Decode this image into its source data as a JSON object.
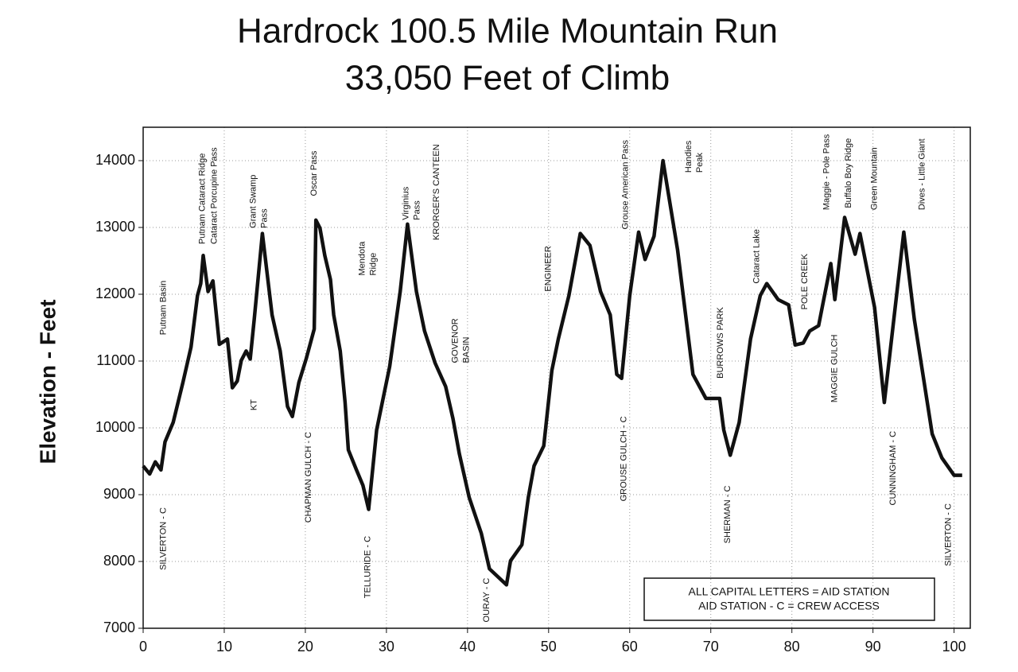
{
  "chart_data": {
    "type": "line",
    "title": [
      "Hardrock 100.5 Mile Mountain Run",
      "33,050 Feet of Climb"
    ],
    "y_label": "Elevation - Feet",
    "color": "#111111",
    "grid": true,
    "xlim": [
      0,
      102
    ],
    "ylim": [
      7000,
      14500
    ],
    "xticks": [
      0,
      10,
      20,
      30,
      40,
      50,
      60,
      70,
      80,
      90,
      100
    ],
    "yticks": [
      7000,
      8000,
      9000,
      10000,
      11000,
      12000,
      13000,
      14000
    ],
    "x": [
      0,
      0.8,
      1.5,
      2.2,
      2.7,
      3.7,
      4.9,
      5.9,
      6.7,
      7.1,
      7.4,
      8.0,
      8.6,
      9.4,
      10.4,
      11.0,
      11.6,
      12.1,
      12.7,
      13.2,
      13.7,
      14.7,
      15.9,
      16.9,
      17.8,
      18.4,
      19.2,
      20.1,
      21.1,
      21.3,
      21.8,
      22.4,
      23.1,
      23.5,
      24.3,
      24.9,
      25.3,
      26.3,
      27.1,
      27.8,
      28.8,
      30.4,
      31.7,
      32.6,
      33.7,
      34.7,
      36.0,
      37.3,
      38.2,
      39.0,
      40.2,
      41.7,
      42.7,
      44.8,
      45.3,
      46.7,
      47.5,
      48.2,
      49.4,
      50.4,
      51.2,
      52.5,
      53.9,
      55.1,
      56.4,
      57.6,
      58.4,
      59.0,
      60.0,
      61.1,
      61.9,
      63.0,
      64.1,
      65.9,
      67.8,
      69.4,
      71.1,
      71.6,
      72.4,
      73.5,
      74.9,
      76.1,
      76.9,
      78.3,
      79.6,
      80.4,
      81.4,
      82.2,
      83.3,
      84.8,
      85.3,
      86.5,
      87.8,
      88.4,
      90.2,
      91.4,
      93.8,
      95.1,
      97.3,
      98.5,
      100.0,
      101.0
    ],
    "values": [
      9430,
      9310,
      9490,
      9370,
      9790,
      10080,
      10680,
      11210,
      11980,
      12160,
      12580,
      12040,
      12200,
      11250,
      11330,
      10600,
      10700,
      11010,
      11150,
      11030,
      11630,
      12910,
      11690,
      11150,
      10320,
      10170,
      10680,
      11030,
      11480,
      13110,
      12990,
      12580,
      12220,
      11690,
      11150,
      10380,
      9670,
      9370,
      9140,
      8780,
      9970,
      10920,
      12040,
      13050,
      12040,
      11450,
      10970,
      10620,
      10140,
      9610,
      8960,
      8420,
      7890,
      7650,
      8010,
      8250,
      8960,
      9430,
      9730,
      10860,
      11330,
      11980,
      12910,
      12730,
      12040,
      11690,
      10800,
      10740,
      11980,
      12930,
      12520,
      12870,
      14000,
      12670,
      10800,
      10440,
      10440,
      9970,
      9590,
      10080,
      11330,
      11980,
      12160,
      11920,
      11840,
      11240,
      11270,
      11450,
      11530,
      12460,
      11920,
      13150,
      12600,
      12910,
      11800,
      10380,
      12930,
      11630,
      9910,
      9550,
      9290,
      9290
    ],
    "annotations": [
      {
        "lines": [
          "Putnam Basin"
        ],
        "x": 2.5,
        "y": 11390
      },
      {
        "lines": [
          "Putnam Cataract Ridge"
        ],
        "x": 7.3,
        "y": 12750
      },
      {
        "lines": [
          "Cataract Porcupine Pass"
        ],
        "x": 8.8,
        "y": 12750
      },
      {
        "lines": [
          "Grant Swamp",
          "Pass"
        ],
        "x": 14.3,
        "y": 12990
      },
      {
        "lines": [
          "Oscar Pass"
        ],
        "x": 21.1,
        "y": 13470
      },
      {
        "lines": [
          "KT"
        ],
        "x": 13.7,
        "y": 10260
      },
      {
        "lines": [
          "CHAPMAN GULCH - C"
        ],
        "x": 20.4,
        "y": 8580
      },
      {
        "lines": [
          "SILVERTON - C"
        ],
        "x": 2.5,
        "y": 7870
      },
      {
        "lines": [
          "Mendota",
          "Ridge"
        ],
        "x": 27.7,
        "y": 12280
      },
      {
        "lines": [
          "Virginius",
          "Pass"
        ],
        "x": 33.1,
        "y": 13110
      },
      {
        "lines": [
          "KRORGER'S CANTEEN"
        ],
        "x": 36.2,
        "y": 12810
      },
      {
        "lines": [
          "GOVENOR",
          "BASIN"
        ],
        "x": 39.2,
        "y": 10970
      },
      {
        "lines": [
          "TELLURIDE - C"
        ],
        "x": 27.7,
        "y": 7450
      },
      {
        "lines": [
          "OURAY - C"
        ],
        "x": 42.4,
        "y": 7090
      },
      {
        "lines": [
          "ENGINEER"
        ],
        "x": 50.0,
        "y": 12040
      },
      {
        "lines": [
          "GROUSE GULCH - C"
        ],
        "x": 59.3,
        "y": 8900
      },
      {
        "lines": [
          "Grouse American Pass"
        ],
        "x": 59.5,
        "y": 12970
      },
      {
        "lines": [
          "Handies",
          "Peak"
        ],
        "x": 68.0,
        "y": 13820
      },
      {
        "lines": [
          "BURROWS PARK"
        ],
        "x": 71.2,
        "y": 10740
      },
      {
        "lines": [
          "SHERMAN - C"
        ],
        "x": 72.1,
        "y": 8270
      },
      {
        "lines": [
          "Cataract Lake"
        ],
        "x": 75.7,
        "y": 12160
      },
      {
        "lines": [
          "POLE CREEK"
        ],
        "x": 81.6,
        "y": 11770
      },
      {
        "lines": [
          "MAGGIE GULCH"
        ],
        "x": 85.3,
        "y": 10380
      },
      {
        "lines": [
          "Maggie - Pole Pass"
        ],
        "x": 84.3,
        "y": 13260
      },
      {
        "lines": [
          "Buffalo Boy Ridge"
        ],
        "x": 87.0,
        "y": 13290
      },
      {
        "lines": [
          "Green Mountain"
        ],
        "x": 90.2,
        "y": 13260
      },
      {
        "lines": [
          "CUNNINGHAM - C"
        ],
        "x": 92.5,
        "y": 8840
      },
      {
        "lines": [
          "Dives - Little Giant"
        ],
        "x": 96.1,
        "y": 13260
      },
      {
        "lines": [
          "SILVERTON - C"
        ],
        "x": 99.3,
        "y": 7930
      }
    ],
    "note": [
      "ALL CAPITAL LETTERS = AID STATION",
      "AID STATION - C = CREW ACCESS"
    ]
  }
}
